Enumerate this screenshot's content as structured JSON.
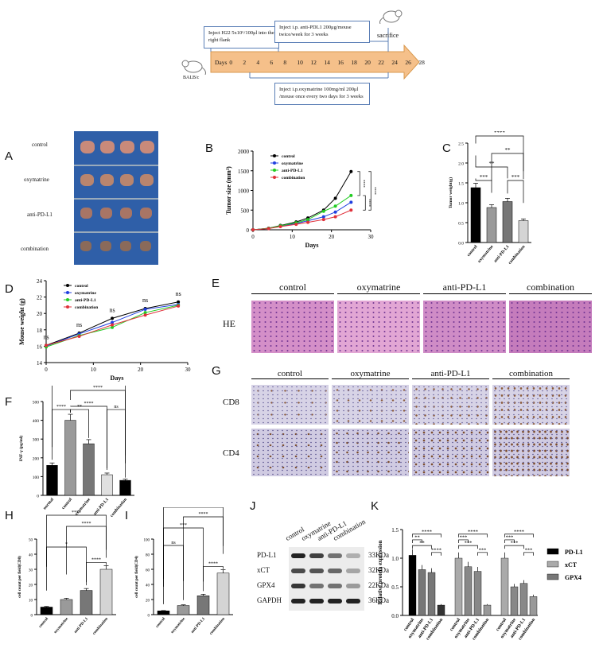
{
  "timeline": {
    "start_box": "Inject H22 5x10⁶/100μl into the right flank",
    "antipdl1_box": "Inject i.p. anti-PDL1 200μg/mouse twice/week for 3 weeks",
    "oxy_box": "Inject i.p.oxymatrine 100mg/ml 200μl /mouse once every two days for 3 weeks",
    "days_label": "Days",
    "days": [
      "0",
      "2",
      "4",
      "6",
      "8",
      "10",
      "12",
      "14",
      "16",
      "18",
      "20",
      "22",
      "24",
      "26",
      "28"
    ],
    "sacrifice": "sacrifice",
    "mouse_label": "BALB/c"
  },
  "panel_letters": [
    "A",
    "B",
    "C",
    "D",
    "E",
    "F",
    "G",
    "H",
    "I",
    "J",
    "K"
  ],
  "groups": [
    "control",
    "oxymatrine",
    "anti-PD-L1",
    "combination"
  ],
  "he_label": "HE",
  "ihc_rows": [
    "CD8",
    "CD4"
  ],
  "colors": {
    "control": "#000000",
    "oxymatrine": "#1f3fe0",
    "antipdl1": "#22cc22",
    "combination": "#e0303a",
    "arrow": "#f5c08a"
  },
  "chart_data": [
    {
      "id": "B",
      "type": "line",
      "ylabel": "Tumor size (mm³)",
      "xlabel": "Days",
      "x": [
        0,
        4,
        7,
        11,
        14,
        18,
        21,
        25
      ],
      "xlim": [
        0,
        30
      ],
      "ylim": [
        0,
        2000
      ],
      "yticks": [
        0,
        500,
        1000,
        1500,
        2000
      ],
      "xticks": [
        0,
        10,
        20,
        30
      ],
      "series": [
        {
          "name": "control",
          "values": [
            0,
            40,
            110,
            200,
            300,
            500,
            800,
            1480
          ]
        },
        {
          "name": "oxymatrine",
          "values": [
            0,
            35,
            90,
            160,
            230,
            330,
            450,
            700
          ]
        },
        {
          "name": "anti-PD-L1",
          "values": [
            0,
            38,
            100,
            180,
            260,
            470,
            600,
            870
          ]
        },
        {
          "name": "combination",
          "values": [
            0,
            30,
            80,
            140,
            190,
            260,
            330,
            500
          ]
        }
      ],
      "sig": [
        "****",
        "****",
        "****"
      ]
    },
    {
      "id": "C",
      "type": "bar",
      "ylabel": "Tumor weight(g)",
      "categories": [
        "control",
        "oxymatrine",
        "anti-PD-L1",
        "combination"
      ],
      "values": [
        1.38,
        0.88,
        1.03,
        0.55
      ],
      "ylim": [
        0,
        2.5
      ],
      "yticks": [
        0.0,
        0.5,
        1.0,
        1.5,
        2.0,
        2.5
      ],
      "sig": [
        "****",
        "**",
        "**",
        "***",
        "***"
      ]
    },
    {
      "id": "D",
      "type": "line",
      "ylabel": "Mouse weight (g)",
      "xlabel": "Days",
      "x": [
        0,
        7,
        14,
        21,
        28
      ],
      "xlim": [
        0,
        30
      ],
      "ylim": [
        14,
        24
      ],
      "yticks": [
        14,
        16,
        18,
        20,
        22,
        24
      ],
      "xticks": [
        0,
        10,
        20,
        30
      ],
      "series": [
        {
          "name": "control",
          "values": [
            16.1,
            17.6,
            19.4,
            20.6,
            21.4
          ]
        },
        {
          "name": "oxymatrine",
          "values": [
            16.0,
            17.5,
            18.9,
            20.5,
            21.1
          ]
        },
        {
          "name": "anti-PD-L1",
          "values": [
            15.9,
            17.3,
            18.3,
            20.1,
            21.0
          ]
        },
        {
          "name": "combination",
          "values": [
            16.1,
            17.2,
            18.6,
            19.8,
            20.9
          ]
        }
      ],
      "sig": [
        "ns",
        "ns",
        "ns",
        "ns",
        "ns"
      ]
    },
    {
      "id": "F",
      "type": "bar",
      "ylabel": "INF-γ (pg/ml)",
      "categories": [
        "normal",
        "control",
        "oxymatrine",
        "anti-PD-L1",
        "combination"
      ],
      "values": [
        160,
        400,
        275,
        110,
        80
      ],
      "ylim": [
        0,
        500
      ],
      "yticks": [
        0,
        100,
        200,
        300,
        400,
        500
      ],
      "sig": [
        "****",
        "**",
        "****",
        "****",
        "ns",
        "****"
      ]
    },
    {
      "id": "H",
      "type": "bar",
      "ylabel": "cell count per field(CD8)",
      "categories": [
        "control",
        "oxymatrine",
        "anti-PD-L1",
        "combination"
      ],
      "values": [
        5,
        10,
        16,
        30
      ],
      "ylim": [
        0,
        50
      ],
      "yticks": [
        0,
        10,
        20,
        30,
        40,
        50
      ],
      "sig": [
        "****",
        "****",
        "*",
        "****"
      ]
    },
    {
      "id": "I",
      "type": "bar",
      "ylabel": "cell count per field(CD4)",
      "categories": [
        "control",
        "oxymatrine",
        "anti-PD-L1",
        "combination"
      ],
      "values": [
        5,
        12,
        25,
        55
      ],
      "ylim": [
        0,
        100
      ],
      "yticks": [
        0,
        20,
        40,
        60,
        80,
        100
      ],
      "sig": [
        "****",
        "****",
        "***",
        "ns",
        "****"
      ]
    },
    {
      "id": "K",
      "type": "bar",
      "ylabel": "Relative protein expression",
      "categories": [
        "control",
        "oxymatrine",
        "anti-PD-L1",
        "combination"
      ],
      "ylim": [
        0,
        1.5
      ],
      "yticks": [
        0.0,
        0.5,
        1.0,
        1.5
      ],
      "series": [
        {
          "name": "PD-L1",
          "values": [
            1.05,
            0.8,
            0.75,
            0.18
          ]
        },
        {
          "name": "xCT",
          "values": [
            1.0,
            0.85,
            0.77,
            0.18
          ]
        },
        {
          "name": "GPX4",
          "values": [
            1.0,
            0.5,
            0.56,
            0.33
          ]
        }
      ],
      "sig": [
        "****",
        "**",
        "**",
        "****",
        "****",
        "***",
        "***",
        "***",
        "****",
        "***",
        "***",
        "***"
      ]
    }
  ],
  "western": {
    "rows": [
      "PD-L1",
      "xCT",
      "GPX4",
      "GAPDH"
    ],
    "sizes": [
      "33KDa",
      "32KDa",
      "22KDa",
      "36KDa"
    ],
    "columns": [
      "control",
      "oxymatrine",
      "anti-PD-L1",
      "combination"
    ]
  },
  "k_legend": [
    "PD-L1",
    "xCT",
    "GPX4"
  ]
}
